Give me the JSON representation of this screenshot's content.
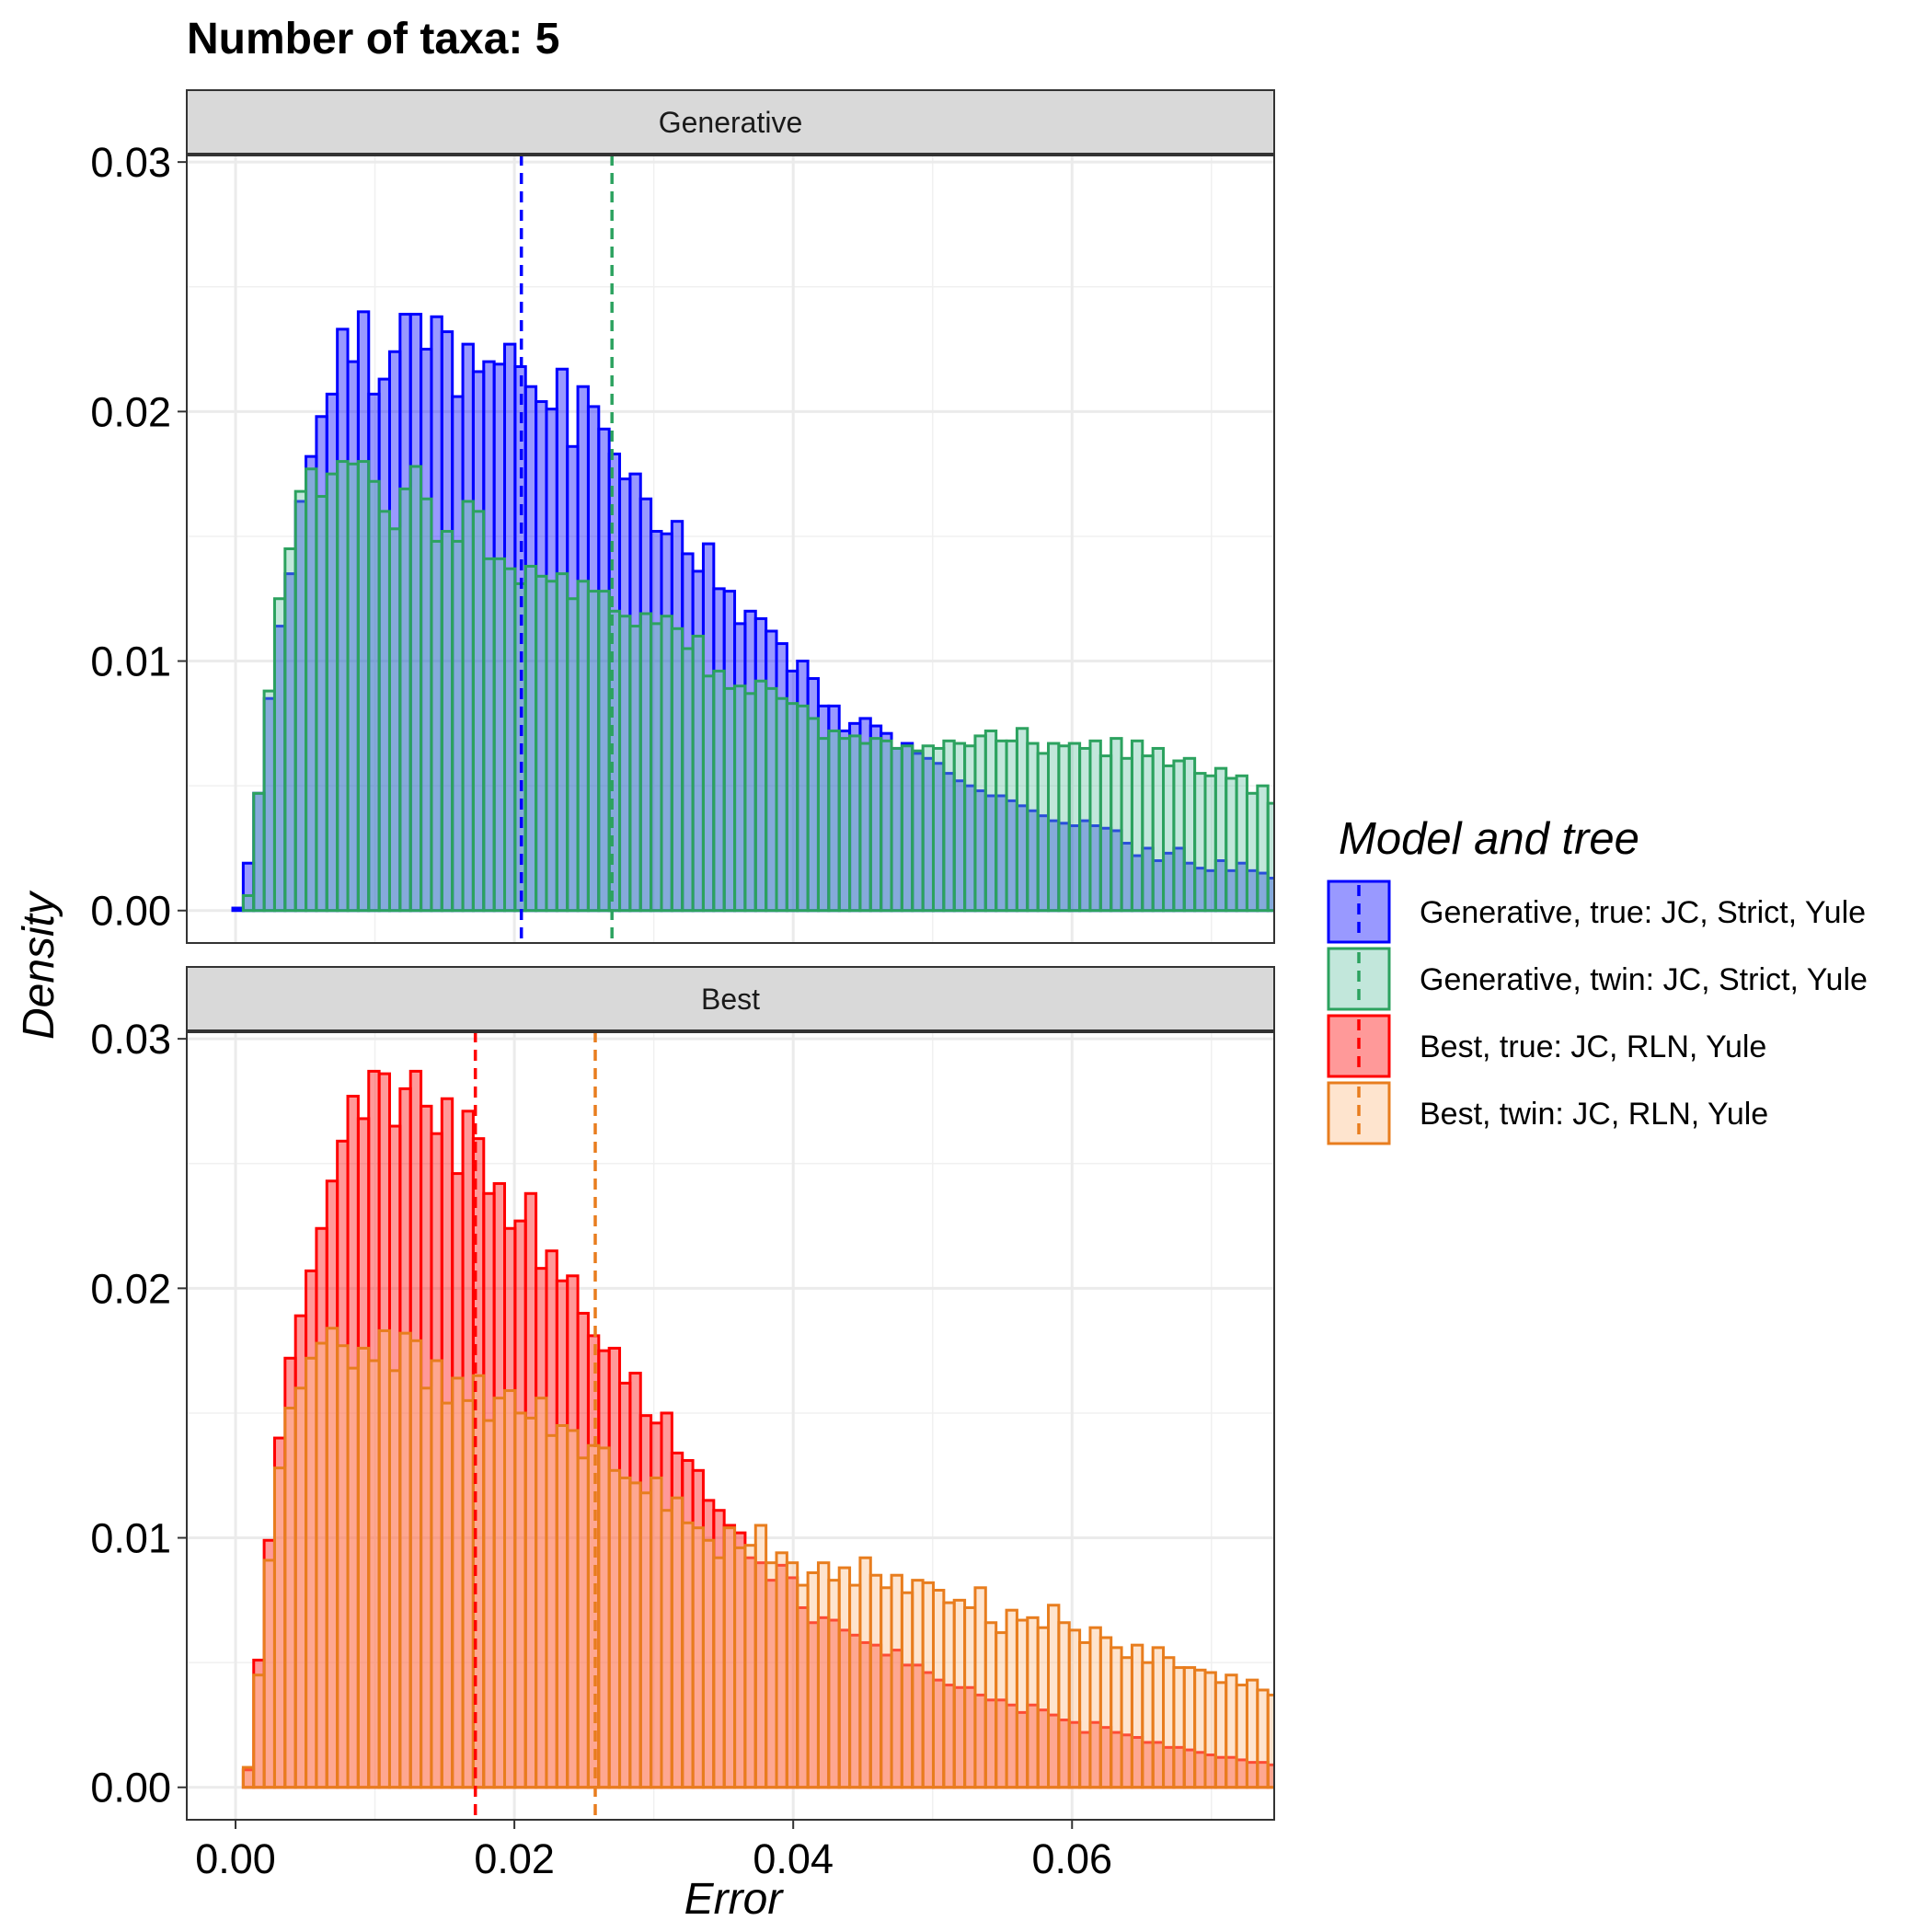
{
  "title": "Number of taxa: 5",
  "xlabel": "Error",
  "ylabel": "Density",
  "legend_title": "Model and tree",
  "chart_data": [
    {
      "type": "histogram",
      "panel": "Generative",
      "xlim": [
        -0.0035,
        0.0745
      ],
      "ylim": [
        -0.0013,
        0.0303
      ],
      "x_ticks": [
        "0.00",
        "0.02",
        "0.04",
        "0.06"
      ],
      "y_ticks": [
        "0.00",
        "0.01",
        "0.02",
        "0.03"
      ],
      "grid": true,
      "bin_start": -0.0002,
      "bin_width": 0.00075,
      "series": [
        {
          "name": "Generative, true: JC, Strict, Yule",
          "color": "#0000ff",
          "fill": "#0000ff",
          "mean": 0.0205,
          "values": [
            0.0001,
            0.0019,
            0.0047,
            0.0085,
            0.0114,
            0.0135,
            0.0164,
            0.0182,
            0.0198,
            0.0207,
            0.0233,
            0.022,
            0.024,
            0.0207,
            0.0213,
            0.0224,
            0.0239,
            0.0239,
            0.0225,
            0.0238,
            0.0232,
            0.0206,
            0.0227,
            0.0216,
            0.022,
            0.0219,
            0.0227,
            0.0218,
            0.021,
            0.0204,
            0.0201,
            0.0217,
            0.0186,
            0.021,
            0.0202,
            0.0193,
            0.0183,
            0.0173,
            0.0175,
            0.0165,
            0.0152,
            0.0151,
            0.0156,
            0.0143,
            0.0136,
            0.0147,
            0.0129,
            0.0128,
            0.0115,
            0.012,
            0.0117,
            0.0112,
            0.0107,
            0.0096,
            0.01,
            0.0093,
            0.0082,
            0.0082,
            0.0072,
            0.0075,
            0.0077,
            0.0074,
            0.0071,
            0.0065,
            0.0067,
            0.0063,
            0.0061,
            0.0059,
            0.0055,
            0.0052,
            0.005,
            0.0048,
            0.0046,
            0.0046,
            0.0044,
            0.0042,
            0.004,
            0.0038,
            0.0036,
            0.0035,
            0.0034,
            0.0036,
            0.0034,
            0.0033,
            0.0032,
            0.0027,
            0.0022,
            0.0025,
            0.002,
            0.0023,
            0.0025,
            0.0019,
            0.0017,
            0.0016,
            0.002,
            0.0016,
            0.0019,
            0.0016,
            0.0015,
            0.0013,
            0.0012,
            0.0013,
            0.0011,
            0.001,
            0.0012,
            0.0009,
            0.001,
            0.001,
            0.0008,
            0.0009,
            0.001,
            0.0009
          ]
        },
        {
          "name": "Generative, twin: JC, Strict, Yule",
          "color": "#2ca25f",
          "fill": "#66c2a4",
          "mean": 0.027,
          "values": [
            0.0,
            0.0006,
            0.0047,
            0.0088,
            0.0125,
            0.0145,
            0.0168,
            0.0177,
            0.0166,
            0.0175,
            0.018,
            0.0179,
            0.018,
            0.0172,
            0.016,
            0.0153,
            0.0169,
            0.0178,
            0.0165,
            0.0148,
            0.0152,
            0.0148,
            0.0164,
            0.016,
            0.0141,
            0.0141,
            0.0137,
            0.0131,
            0.0138,
            0.0134,
            0.0132,
            0.0135,
            0.0125,
            0.0132,
            0.0128,
            0.0128,
            0.012,
            0.0118,
            0.0114,
            0.0119,
            0.0115,
            0.0118,
            0.0113,
            0.0105,
            0.011,
            0.0094,
            0.0096,
            0.0089,
            0.009,
            0.0087,
            0.0092,
            0.0089,
            0.0085,
            0.0083,
            0.0082,
            0.0077,
            0.0069,
            0.0072,
            0.0069,
            0.007,
            0.0067,
            0.0069,
            0.0068,
            0.0065,
            0.0066,
            0.0064,
            0.0066,
            0.0065,
            0.0068,
            0.0067,
            0.0066,
            0.007,
            0.0072,
            0.0068,
            0.0068,
            0.0073,
            0.0067,
            0.0063,
            0.0067,
            0.0066,
            0.0067,
            0.0065,
            0.0068,
            0.0062,
            0.0069,
            0.0061,
            0.0068,
            0.0062,
            0.0065,
            0.0058,
            0.006,
            0.0061,
            0.0055,
            0.0054,
            0.0057,
            0.0053,
            0.0054,
            0.0047,
            0.005,
            0.0043,
            0.0047,
            0.0045,
            0.0046,
            0.0048,
            0.0043,
            0.0046,
            0.0041,
            0.0043,
            0.004,
            0.0045,
            0.0042,
            0.0041
          ]
        }
      ]
    },
    {
      "type": "histogram",
      "panel": "Best",
      "xlim": [
        -0.0035,
        0.0745
      ],
      "ylim": [
        -0.0013,
        0.0303
      ],
      "x_ticks": [
        "0.00",
        "0.02",
        "0.04",
        "0.06"
      ],
      "y_ticks": [
        "0.00",
        "0.01",
        "0.02",
        "0.03"
      ],
      "grid": true,
      "bin_start": -0.0002,
      "bin_width": 0.00075,
      "series": [
        {
          "name": "Best, true: JC, RLN, Yule",
          "color": "#ff0000",
          "fill": "#ff0000",
          "mean": 0.0172,
          "values": [
            0.0,
            0.0007,
            0.0051,
            0.0099,
            0.014,
            0.0172,
            0.0189,
            0.0207,
            0.0224,
            0.0243,
            0.0259,
            0.0277,
            0.0268,
            0.0287,
            0.0286,
            0.0265,
            0.028,
            0.0287,
            0.0273,
            0.0262,
            0.0276,
            0.0246,
            0.0271,
            0.026,
            0.0238,
            0.0242,
            0.0224,
            0.0227,
            0.0238,
            0.0208,
            0.0215,
            0.0203,
            0.0205,
            0.019,
            0.0181,
            0.0175,
            0.0176,
            0.0162,
            0.0166,
            0.0149,
            0.0146,
            0.015,
            0.0134,
            0.0131,
            0.0127,
            0.0115,
            0.0111,
            0.0105,
            0.0102,
            0.0092,
            0.009,
            0.0083,
            0.0089,
            0.0084,
            0.0072,
            0.0066,
            0.0068,
            0.0067,
            0.0063,
            0.0061,
            0.0058,
            0.0057,
            0.0053,
            0.0055,
            0.0049,
            0.0049,
            0.0046,
            0.0043,
            0.0041,
            0.004,
            0.004,
            0.0037,
            0.0035,
            0.0035,
            0.0033,
            0.003,
            0.0033,
            0.0031,
            0.0029,
            0.0027,
            0.0026,
            0.0022,
            0.0026,
            0.0024,
            0.0022,
            0.0021,
            0.002,
            0.0018,
            0.0018,
            0.0016,
            0.0016,
            0.0015,
            0.0014,
            0.0013,
            0.0012,
            0.0012,
            0.0011,
            0.001,
            0.001,
            0.0009,
            0.0008,
            0.0008,
            0.0007,
            0.0007,
            0.0006,
            0.0006,
            0.0005,
            0.0005,
            0.0005,
            0.0005,
            0.0005,
            0.0004
          ]
        },
        {
          "name": "Best, twin: JC, RLN, Yule",
          "color": "#e87d1e",
          "fill": "#fdbb84",
          "mean": 0.0258,
          "values": [
            0.0,
            0.0008,
            0.0045,
            0.0091,
            0.0128,
            0.0152,
            0.016,
            0.0172,
            0.0178,
            0.0184,
            0.0177,
            0.0168,
            0.0176,
            0.0171,
            0.0183,
            0.0167,
            0.0182,
            0.0179,
            0.016,
            0.0171,
            0.0154,
            0.0164,
            0.0155,
            0.0165,
            0.0147,
            0.0156,
            0.0159,
            0.015,
            0.0148,
            0.0156,
            0.0141,
            0.0145,
            0.0143,
            0.0132,
            0.0137,
            0.0136,
            0.0127,
            0.0124,
            0.0122,
            0.0118,
            0.0124,
            0.0111,
            0.0116,
            0.0106,
            0.0104,
            0.0099,
            0.0092,
            0.0104,
            0.0096,
            0.0097,
            0.0105,
            0.009,
            0.0094,
            0.009,
            0.0081,
            0.0086,
            0.009,
            0.0083,
            0.0088,
            0.0081,
            0.0092,
            0.0085,
            0.008,
            0.0085,
            0.0078,
            0.0083,
            0.0082,
            0.0079,
            0.0074,
            0.0075,
            0.0072,
            0.008,
            0.0066,
            0.0062,
            0.0071,
            0.0067,
            0.0068,
            0.0064,
            0.0073,
            0.0066,
            0.0063,
            0.0058,
            0.0064,
            0.006,
            0.0056,
            0.0052,
            0.0057,
            0.005,
            0.0056,
            0.0052,
            0.0048,
            0.0048,
            0.0047,
            0.0046,
            0.0042,
            0.0045,
            0.0041,
            0.0043,
            0.0039,
            0.0037,
            0.004,
            0.0038,
            0.0038,
            0.0036,
            0.0037,
            0.0033,
            0.0036,
            0.0035,
            0.0034,
            0.0032,
            0.0034,
            0.0036
          ]
        }
      ]
    }
  ]
}
